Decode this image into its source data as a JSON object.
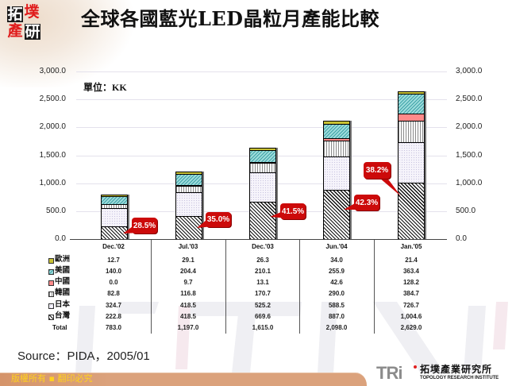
{
  "header": {
    "title": "全球各國藍光LED晶粒月產能比較"
  },
  "logo": {
    "chars": [
      "拓",
      "墣",
      "產",
      "研"
    ]
  },
  "chart": {
    "unit_label": "單位：KK"
  },
  "chart_data": {
    "type": "bar",
    "stacked": true,
    "title": "全球各國藍光LED晶粒月產能比較",
    "xlabel": "",
    "ylabel": "單位：KK",
    "ylim": [
      0,
      3000
    ],
    "grid": true,
    "yticks": [
      "3,000.0",
      "2,500.0",
      "2,000.0",
      "1,500.0",
      "1,000.0",
      "500.0",
      "0.0"
    ],
    "y2ticks": [
      "3,000.0",
      "2,500.0",
      "2,000.0",
      "1,500.0",
      "1,000.0",
      "500.0",
      "0.0"
    ],
    "categories": [
      "Dec.'02",
      "Jul.'03",
      "Dec.'03",
      "Jun.'04",
      "Jan.'05"
    ],
    "series": [
      {
        "key": "europe",
        "name": "歐洲",
        "values": [
          12.7,
          29.1,
          26.3,
          34.0,
          21.4
        ],
        "color": "#c9c234"
      },
      {
        "key": "usa",
        "name": "美國",
        "values": [
          140.0,
          204.4,
          210.1,
          255.9,
          363.4
        ],
        "color": "#66c4c6"
      },
      {
        "key": "china",
        "name": "中國",
        "values": [
          0.0,
          9.7,
          13.1,
          42.6,
          128.2
        ],
        "color": "#ff8a8a"
      },
      {
        "key": "korea",
        "name": "韓國",
        "values": [
          82.8,
          116.8,
          170.7,
          290.0,
          384.7
        ],
        "color": "#bbbbbb"
      },
      {
        "key": "japan",
        "name": "日本",
        "values": [
          324.7,
          418.5,
          525.2,
          588.5,
          726.7
        ],
        "color": "#eeebf6"
      },
      {
        "key": "taiwan",
        "name": "台灣",
        "values": [
          222.8,
          418.5,
          669.6,
          887.0,
          1004.6
        ],
        "color": "#555555"
      }
    ],
    "totals": [
      783.0,
      1197.0,
      1615.0,
      2098.0,
      2629.0
    ],
    "annotations": [
      {
        "category": "Dec.'02",
        "text": "28.5%"
      },
      {
        "category": "Jul.'03",
        "text": "35.0%"
      },
      {
        "category": "Dec.'03",
        "text": "41.5%"
      },
      {
        "category": "Jun.'04",
        "text": "42.3%"
      },
      {
        "category": "Jan.'05",
        "text": "38.2%"
      }
    ],
    "legend_position": "table-left"
  },
  "table": {
    "rows": [
      {
        "label": "歐洲",
        "key": "europe",
        "cells": [
          "12.7",
          "29.1",
          "26.3",
          "34.0",
          "21.4"
        ]
      },
      {
        "label": "美國",
        "key": "usa",
        "cells": [
          "140.0",
          "204.4",
          "210.1",
          "255.9",
          "363.4"
        ]
      },
      {
        "label": "中國",
        "key": "china",
        "cells": [
          "0.0",
          "9.7",
          "13.1",
          "42.6",
          "128.2"
        ]
      },
      {
        "label": "韓國",
        "key": "korea",
        "cells": [
          "82.8",
          "116.8",
          "170.7",
          "290.0",
          "384.7"
        ]
      },
      {
        "label": "日本",
        "key": "japan",
        "cells": [
          "324.7",
          "418.5",
          "525.2",
          "588.5",
          "726.7"
        ]
      },
      {
        "label": "台灣",
        "key": "taiwan",
        "cells": [
          "222.8",
          "418.5",
          "669.6",
          "887.0",
          "1,004.6"
        ]
      },
      {
        "label": "Total",
        "key": "total",
        "cells": [
          "783.0",
          "1,197.0",
          "1,615.0",
          "2,098.0",
          "2,629.0"
        ]
      }
    ]
  },
  "source": "Source：PIDA，2005/01",
  "footer": {
    "copyright": "版權所有 ▪ 翻印必究",
    "org_logo": "TRi",
    "org_name_zh": "拓墣產業研究所",
    "org_name_en": "TOPOLOGY RESEARCH INSTITUTE"
  },
  "colors": {
    "callout": "#cc0a0a",
    "footer_band": "#dba27c",
    "copyright_text": "#ffd21f"
  }
}
